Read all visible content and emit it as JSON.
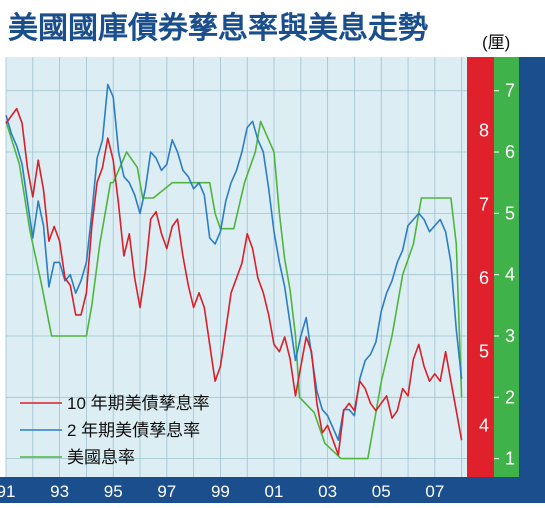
{
  "chart_data": {
    "type": "line",
    "title": "美國國庫債券孳息率與美息走勢",
    "unit_label": "(厘)",
    "x_ticks": [
      "91",
      "93",
      "95",
      "97",
      "99",
      "01",
      "03",
      "05",
      "07"
    ],
    "x_range": [
      1991,
      2008.2
    ],
    "y_left_range": [
      0.7,
      7.55
    ],
    "y_left_ticks": [
      "1",
      "2",
      "3",
      "4",
      "5",
      "6",
      "7"
    ],
    "y_right_range": [
      3.3,
      9.0
    ],
    "y_right_ticks": [
      "4",
      "5",
      "6",
      "7",
      "8"
    ],
    "grid": true,
    "legend_position": "bottom-left",
    "colors": {
      "ten_year": "#d8202a",
      "two_year": "#2b7ec4",
      "fed": "#4fb53d",
      "red_band": "#e0202a",
      "green_band": "#3fb24a",
      "blue_band": "#1a4e8c",
      "plot_bg": "#dcedf3",
      "grid": "#9ec3d0"
    },
    "series": [
      {
        "name": "10 年期美債孳息率",
        "axis": "right",
        "x": [
          1991.0,
          1991.2,
          1991.4,
          1991.6,
          1991.8,
          1992.0,
          1992.2,
          1992.4,
          1992.6,
          1992.8,
          1993.0,
          1993.2,
          1993.4,
          1993.6,
          1993.8,
          1994.0,
          1994.2,
          1994.4,
          1994.6,
          1994.8,
          1995.0,
          1995.2,
          1995.4,
          1995.6,
          1995.8,
          1996.0,
          1996.2,
          1996.4,
          1996.6,
          1996.8,
          1997.0,
          1997.2,
          1997.4,
          1997.6,
          1997.8,
          1998.0,
          1998.2,
          1998.4,
          1998.6,
          1998.8,
          1999.0,
          1999.2,
          1999.4,
          1999.6,
          1999.8,
          2000.0,
          2000.2,
          2000.4,
          2000.6,
          2000.8,
          2001.0,
          2001.2,
          2001.4,
          2001.6,
          2001.8,
          2002.0,
          2002.2,
          2002.4,
          2002.6,
          2002.8,
          2003.0,
          2003.2,
          2003.4,
          2003.6,
          2003.8,
          2004.0,
          2004.2,
          2004.4,
          2004.6,
          2004.8,
          2005.0,
          2005.2,
          2005.4,
          2005.6,
          2005.8,
          2006.0,
          2006.2,
          2006.4,
          2006.6,
          2006.8,
          2007.0,
          2007.2,
          2007.4,
          2007.6,
          2007.8,
          2008.0
        ],
        "values": [
          8.1,
          8.2,
          8.3,
          8.1,
          7.5,
          7.1,
          7.6,
          7.2,
          6.5,
          6.7,
          6.5,
          6.0,
          5.9,
          5.5,
          5.5,
          5.8,
          6.7,
          7.3,
          7.5,
          7.9,
          7.6,
          7.0,
          6.3,
          6.6,
          6.0,
          5.6,
          6.1,
          6.8,
          6.9,
          6.6,
          6.4,
          6.7,
          6.8,
          6.3,
          5.9,
          5.6,
          5.8,
          5.6,
          5.1,
          4.6,
          4.8,
          5.3,
          5.8,
          6.0,
          6.2,
          6.6,
          6.4,
          6.0,
          5.8,
          5.5,
          5.1,
          5.0,
          5.2,
          4.9,
          4.4,
          4.8,
          5.2,
          5.0,
          4.3,
          3.9,
          4.0,
          3.8,
          3.6,
          4.2,
          4.3,
          4.2,
          4.6,
          4.5,
          4.3,
          4.2,
          4.3,
          4.4,
          4.1,
          4.2,
          4.5,
          4.4,
          4.9,
          5.1,
          4.8,
          4.6,
          4.7,
          4.6,
          5.0,
          4.6,
          4.2,
          3.8
        ]
      },
      {
        "name": "2 年期美債孳息率",
        "axis": "left",
        "x": [
          1991.0,
          1991.2,
          1991.4,
          1991.6,
          1991.8,
          1992.0,
          1992.2,
          1992.4,
          1992.6,
          1992.8,
          1993.0,
          1993.2,
          1993.4,
          1993.6,
          1993.8,
          1994.0,
          1994.2,
          1994.4,
          1994.6,
          1994.8,
          1995.0,
          1995.2,
          1995.4,
          1995.6,
          1995.8,
          1996.0,
          1996.2,
          1996.4,
          1996.6,
          1996.8,
          1997.0,
          1997.2,
          1997.4,
          1997.6,
          1997.8,
          1998.0,
          1998.2,
          1998.4,
          1998.6,
          1998.8,
          1999.0,
          1999.2,
          1999.4,
          1999.6,
          1999.8,
          2000.0,
          2000.2,
          2000.4,
          2000.6,
          2000.8,
          2001.0,
          2001.2,
          2001.4,
          2001.6,
          2001.8,
          2002.0,
          2002.2,
          2002.4,
          2002.6,
          2002.8,
          2003.0,
          2003.2,
          2003.4,
          2003.6,
          2003.8,
          2004.0,
          2004.2,
          2004.4,
          2004.6,
          2004.8,
          2005.0,
          2005.2,
          2005.4,
          2005.6,
          2005.8,
          2006.0,
          2006.2,
          2006.4,
          2006.6,
          2006.8,
          2007.0,
          2007.2,
          2007.4,
          2007.6,
          2007.8,
          2008.0
        ],
        "values": [
          6.6,
          6.3,
          6.1,
          5.8,
          5.2,
          4.6,
          5.2,
          4.8,
          3.8,
          4.2,
          4.2,
          3.9,
          4.0,
          3.7,
          3.9,
          4.2,
          5.0,
          5.9,
          6.2,
          7.1,
          6.9,
          6.0,
          5.6,
          5.5,
          5.3,
          5.0,
          5.4,
          6.0,
          5.9,
          5.7,
          5.8,
          6.2,
          6.0,
          5.7,
          5.6,
          5.4,
          5.5,
          5.3,
          4.6,
          4.5,
          4.7,
          5.2,
          5.5,
          5.7,
          6.0,
          6.4,
          6.5,
          6.2,
          6.0,
          5.4,
          4.7,
          4.2,
          3.8,
          3.2,
          2.6,
          3.0,
          3.3,
          2.7,
          2.1,
          1.8,
          1.7,
          1.5,
          1.3,
          1.8,
          1.8,
          1.7,
          2.3,
          2.6,
          2.7,
          2.9,
          3.4,
          3.7,
          3.9,
          4.2,
          4.4,
          4.8,
          4.9,
          5.0,
          4.9,
          4.7,
          4.8,
          4.9,
          4.7,
          4.2,
          3.1,
          2.3
        ]
      },
      {
        "name": "美國息率",
        "axis": "left",
        "x": [
          1991.0,
          1991.5,
          1991.9,
          1992.3,
          1992.7,
          1993.0,
          1993.5,
          1994.0,
          1994.2,
          1994.5,
          1994.9,
          1995.0,
          1995.5,
          1995.9,
          1996.1,
          1996.5,
          1997.2,
          1997.5,
          1998.0,
          1998.6,
          1998.8,
          1999.0,
          1999.5,
          1999.9,
          2000.3,
          2000.5,
          2001.0,
          2001.2,
          2001.4,
          2001.6,
          2001.8,
          2001.95,
          2002.5,
          2002.9,
          2003.5,
          2004.0,
          2004.5,
          2004.8,
          2005.0,
          2005.4,
          2005.8,
          2006.2,
          2006.5,
          2007.0,
          2007.6,
          2007.8,
          2008.0
        ],
        "values": [
          6.5,
          5.8,
          4.7,
          3.9,
          3.0,
          3.0,
          3.0,
          3.0,
          3.5,
          4.5,
          5.5,
          5.5,
          6.0,
          5.75,
          5.25,
          5.25,
          5.5,
          5.5,
          5.5,
          5.5,
          5.0,
          4.75,
          4.75,
          5.5,
          6.0,
          6.5,
          6.0,
          5.0,
          4.25,
          3.75,
          3.0,
          2.0,
          1.75,
          1.25,
          1.0,
          1.0,
          1.0,
          1.75,
          2.25,
          3.0,
          4.0,
          4.5,
          5.25,
          5.25,
          5.25,
          4.5,
          2.0
        ]
      }
    ]
  }
}
